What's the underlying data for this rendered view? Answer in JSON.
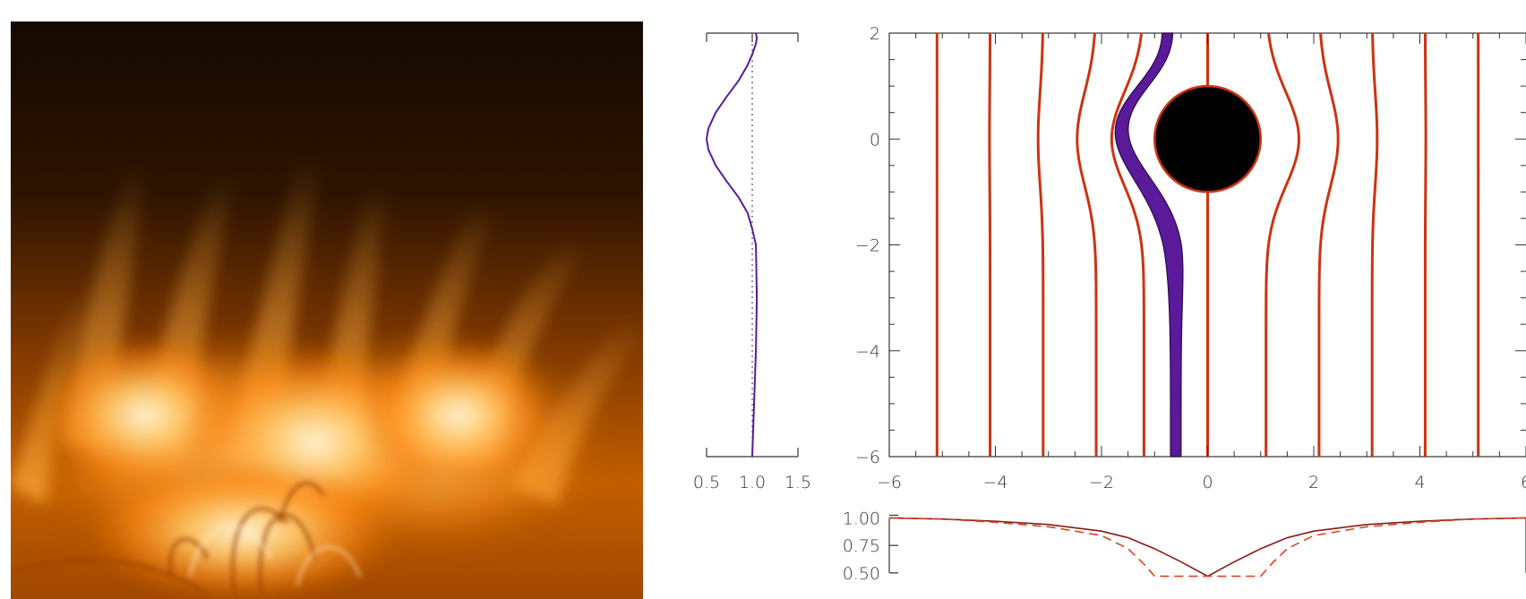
{
  "image": {
    "panel": "solar-corona-photo",
    "palette": [
      "#0f0700",
      "#3a1a00",
      "#8a3c00",
      "#d46a00",
      "#ff9a1e",
      "#ffd27a",
      "#fff3d2"
    ]
  },
  "colors": {
    "field_lines": "#cc3311",
    "highlight": "#5a1a9a",
    "obstacle": "#000000",
    "axis": "#333333",
    "profile_solid": "#8b1a1a",
    "profile_dashed": "#dd4422"
  },
  "chart_data": [
    {
      "type": "line",
      "name_key": "left-profile",
      "xlim": [
        0.5,
        1.5
      ],
      "ylim": [
        -6,
        2
      ],
      "xticks": [
        "0.5",
        "1.0",
        "1.5"
      ],
      "reference_line": 1.0,
      "series": [
        {
          "x": [
            1.0,
            1.01,
            1.02,
            1.04,
            1.05,
            1.04,
            1.0,
            0.95,
            0.85,
            0.72,
            0.6,
            0.52,
            0.5,
            0.52,
            0.6,
            0.72,
            0.85,
            0.95,
            1.0,
            1.04,
            1.05,
            1.04
          ],
          "y": [
            -6.0,
            -5.5,
            -5.0,
            -4.0,
            -3.0,
            -2.0,
            -1.7,
            -1.4,
            -1.1,
            -0.8,
            -0.5,
            -0.2,
            0.0,
            0.2,
            0.5,
            0.8,
            1.1,
            1.4,
            1.6,
            1.8,
            1.9,
            2.0
          ]
        }
      ]
    },
    {
      "type": "line",
      "name_key": "field-lines",
      "xlim": [
        -6,
        6
      ],
      "ylim": [
        -6,
        2
      ],
      "xticks": [
        "−6",
        "−4",
        "−2",
        "0",
        "2",
        "4",
        "6"
      ],
      "yticks": [
        "−6",
        "−4",
        "−2",
        "0",
        "2"
      ],
      "obstacle": {
        "center": [
          0,
          0
        ],
        "radius": 1.0,
        "stem_halfwidth": 0.05
      },
      "field_line_x0": [
        -5.1,
        -4.1,
        -3.1,
        -2.1,
        -1.2,
        0.0,
        1.1,
        2.1,
        3.1,
        4.1,
        5.1
      ],
      "highlighted_band": {
        "x0_left": -0.7,
        "x0_right": -0.5
      }
    },
    {
      "type": "line",
      "name_key": "bottom-profile",
      "xlim": [
        -6,
        6
      ],
      "ylim": [
        0.45,
        1.02
      ],
      "yticks": [
        "0.50",
        "0.75",
        "1.00"
      ],
      "series": [
        {
          "style": "solid",
          "x": [
            -6,
            -5,
            -4,
            -3,
            -2,
            -1.5,
            -1,
            -0.5,
            0,
            0.5,
            1,
            1.5,
            2,
            3,
            4,
            5,
            6
          ],
          "y": [
            1.0,
            0.99,
            0.97,
            0.94,
            0.88,
            0.82,
            0.72,
            0.6,
            0.47,
            0.6,
            0.72,
            0.82,
            0.88,
            0.94,
            0.97,
            0.99,
            1.0
          ]
        },
        {
          "style": "dashed",
          "x": [
            -6,
            -5,
            -4,
            -3,
            -2,
            -1.5,
            -1.2,
            -1.0,
            1.0,
            1.2,
            1.5,
            2,
            3,
            4,
            5,
            6
          ],
          "y": [
            1.0,
            0.99,
            0.96,
            0.92,
            0.84,
            0.72,
            0.58,
            0.47,
            0.47,
            0.58,
            0.72,
            0.84,
            0.92,
            0.96,
            0.99,
            1.0
          ]
        }
      ]
    }
  ]
}
